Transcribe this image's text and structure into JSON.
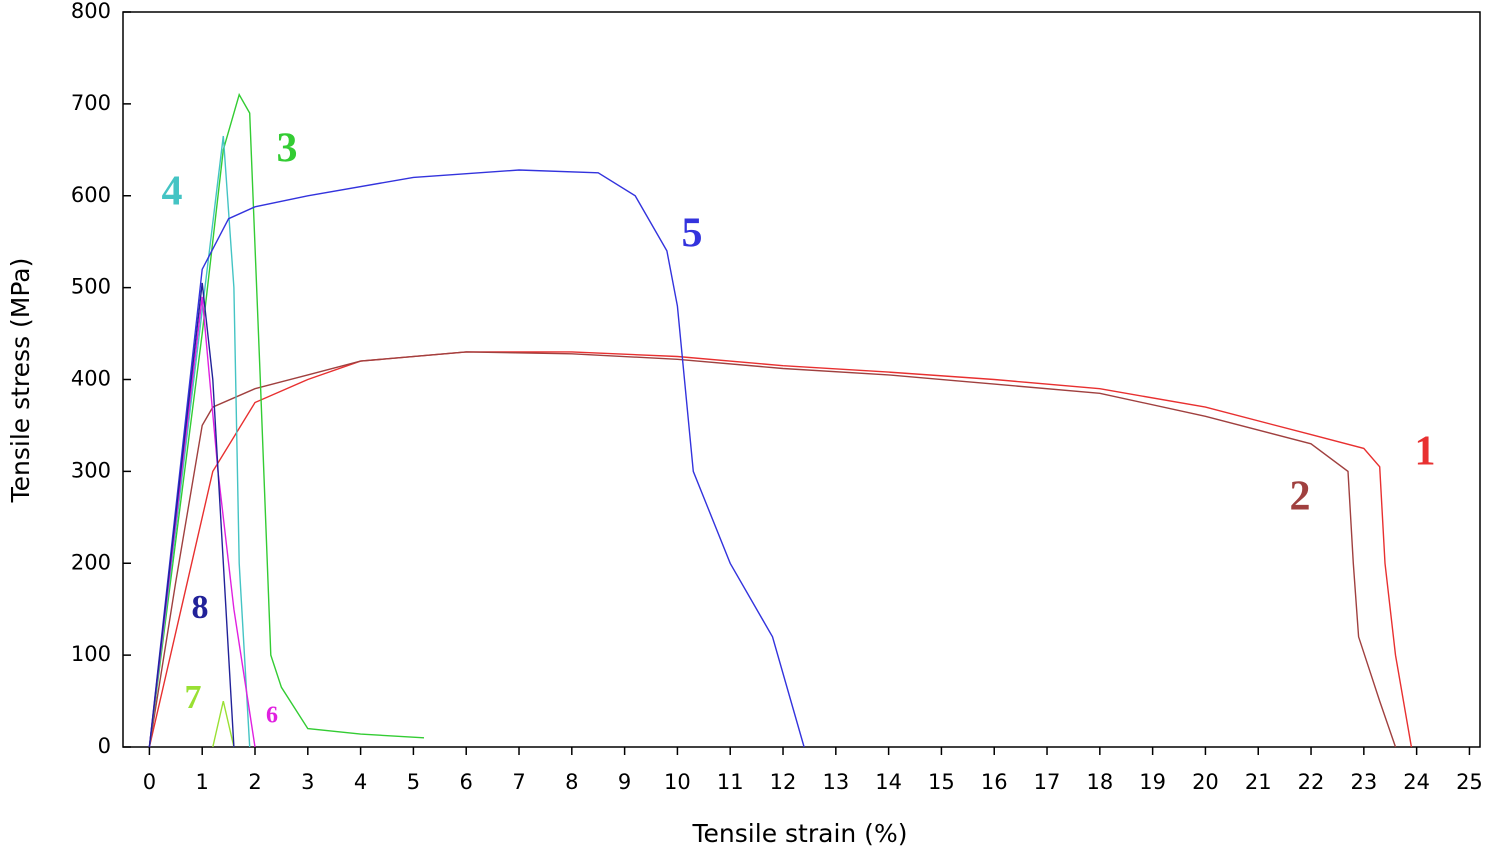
{
  "chart_data": {
    "type": "line",
    "x_label": "Tensile strain (%)",
    "y_label": "Tensile stress (MPa)",
    "xlim": [
      -0.5,
      25.2
    ],
    "ylim": [
      0,
      800
    ],
    "xticks": [
      0,
      1,
      2,
      3,
      4,
      5,
      6,
      7,
      8,
      9,
      10,
      11,
      12,
      13,
      14,
      15,
      16,
      17,
      18,
      19,
      20,
      21,
      22,
      23,
      24,
      25
    ],
    "yticks": [
      0,
      100,
      200,
      300,
      400,
      500,
      600,
      700,
      800
    ],
    "series": [
      {
        "name": "1",
        "color": "#e83030",
        "x": [
          0,
          0.6,
          1.2,
          2,
          3,
          4,
          6,
          8,
          10,
          12,
          14,
          16,
          18,
          20,
          22,
          23,
          23.3,
          23.4,
          23.6,
          23.9
        ],
        "values": [
          0,
          150,
          300,
          375,
          400,
          420,
          430,
          430,
          425,
          415,
          408,
          400,
          390,
          370,
          340,
          325,
          305,
          200,
          100,
          0
        ]
      },
      {
        "name": "2",
        "color": "#a0403f",
        "x": [
          0,
          0.5,
          1,
          1.2,
          2,
          3,
          4,
          6,
          8,
          10,
          12,
          14,
          16,
          18,
          20,
          22,
          22.7,
          22.8,
          22.9,
          23.3,
          23.6
        ],
        "values": [
          0,
          180,
          350,
          370,
          390,
          405,
          420,
          430,
          428,
          422,
          412,
          405,
          395,
          385,
          360,
          330,
          300,
          200,
          120,
          50,
          0
        ]
      },
      {
        "name": "3",
        "color": "#33cc33",
        "x": [
          0,
          1,
          1.4,
          1.7,
          1.9,
          2.1,
          2.3,
          2.5,
          3,
          4,
          5.2
        ],
        "values": [
          0,
          450,
          650,
          710,
          690,
          400,
          100,
          65,
          20,
          14,
          10
        ]
      },
      {
        "name": "4",
        "color": "#44c4c4",
        "x": [
          0,
          1.4,
          1.6,
          1.7,
          1.9
        ],
        "values": [
          0,
          665,
          500,
          200,
          0
        ]
      },
      {
        "name": "5",
        "color": "#3333dd",
        "x": [
          0,
          1,
          1.5,
          2,
          3,
          5,
          7,
          8.5,
          9.2,
          9.8,
          10,
          10.3,
          11,
          11.8,
          12.4
        ],
        "values": [
          0,
          520,
          575,
          588,
          600,
          620,
          628,
          625,
          600,
          540,
          480,
          300,
          200,
          120,
          0
        ]
      },
      {
        "name": "6",
        "color": "#e020e0",
        "x": [
          0,
          1,
          1.3,
          1.6,
          2
        ],
        "values": [
          0,
          490,
          300,
          150,
          0
        ]
      },
      {
        "name": "7",
        "color": "#99e033",
        "x": [
          1.2,
          1.4,
          1.6
        ],
        "values": [
          0,
          50,
          0
        ]
      },
      {
        "name": "8",
        "color": "#222299",
        "x": [
          0,
          1,
          1.2,
          1.5,
          1.6
        ],
        "values": [
          0,
          505,
          400,
          100,
          0
        ]
      }
    ]
  }
}
